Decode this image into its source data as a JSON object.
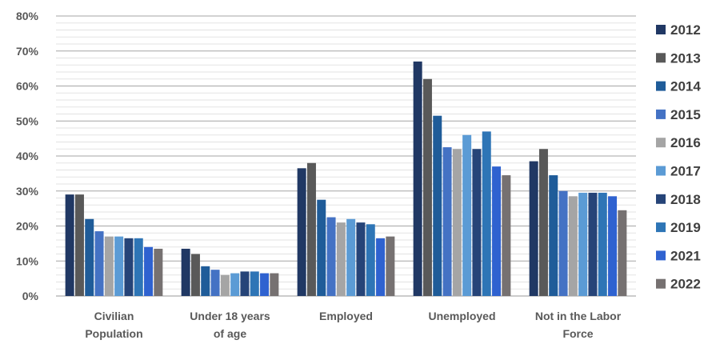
{
  "chart_data": {
    "type": "bar",
    "title": "",
    "xlabel": "",
    "ylabel": "",
    "ylim": [
      0,
      80
    ],
    "y_ticks": [
      "0%",
      "10%",
      "20%",
      "30%",
      "40%",
      "50%",
      "60%",
      "70%",
      "80%"
    ],
    "grid": "horizontal",
    "legend_position": "right",
    "categories": [
      [
        "Civilian",
        "Population"
      ],
      [
        "Under 18 years",
        "of age"
      ],
      [
        "Employed"
      ],
      [
        "Unemployed"
      ],
      [
        "Not in the Labor",
        "Force"
      ]
    ],
    "series": [
      {
        "name": "2012",
        "color": "#203864",
        "values": [
          29,
          13.5,
          36.5,
          67,
          38.5
        ]
      },
      {
        "name": "2013",
        "color": "#595959",
        "values": [
          29,
          12,
          38,
          62,
          42
        ]
      },
      {
        "name": "2014",
        "color": "#1f5c99",
        "values": [
          22,
          8.5,
          27.5,
          51.5,
          34.5
        ]
      },
      {
        "name": "2015",
        "color": "#4472c4",
        "values": [
          18.5,
          7.5,
          22.5,
          42.5,
          30
        ]
      },
      {
        "name": "2016",
        "color": "#a5a5a5",
        "values": [
          17,
          6,
          21,
          42,
          28.5
        ]
      },
      {
        "name": "2017",
        "color": "#5b9bd5",
        "values": [
          17,
          6.5,
          22,
          46,
          29.5
        ]
      },
      {
        "name": "2018",
        "color": "#264478",
        "values": [
          16.5,
          7,
          21,
          42,
          29.5
        ]
      },
      {
        "name": "2019",
        "color": "#2e75b6",
        "values": [
          16.5,
          7,
          20.5,
          47,
          29.5
        ]
      },
      {
        "name": "2021",
        "color": "#2f62d0",
        "values": [
          14,
          6.5,
          16.5,
          37,
          28.5
        ]
      },
      {
        "name": "2022",
        "color": "#767171",
        "values": [
          13.5,
          6.5,
          17,
          34.5,
          24.5
        ]
      }
    ]
  }
}
